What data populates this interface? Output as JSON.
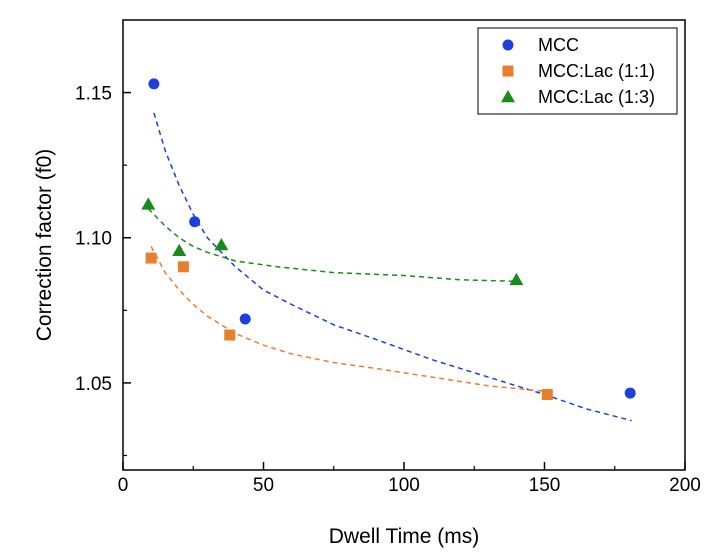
{
  "chart_data": {
    "type": "scatter",
    "title": "",
    "xlabel": "Dwell Time (ms)",
    "ylabel": "Correction factor (f0)",
    "xlim": [
      0,
      200
    ],
    "ylim": [
      1.02,
      1.175
    ],
    "xticks": [
      0,
      50,
      100,
      150,
      200
    ],
    "xtick_labels": [
      "0",
      "50",
      "100",
      "150",
      "200"
    ],
    "yticks": [
      1.05,
      1.1,
      1.15
    ],
    "ytick_labels": [
      "1.05",
      "1.10",
      "1.15"
    ],
    "grid": false,
    "legend_position": "top-right",
    "series": [
      {
        "name": "MCC",
        "marker": "circle",
        "color": "#1f3fdd",
        "points": [
          [
            11,
            1.153
          ],
          [
            25.5,
            1.1055
          ],
          [
            43.5,
            1.072
          ],
          [
            180.5,
            1.0465
          ]
        ],
        "fit": [
          [
            11,
            1.143
          ],
          [
            15,
            1.13
          ],
          [
            20,
            1.118
          ],
          [
            25,
            1.108
          ],
          [
            30,
            1.1
          ],
          [
            40,
            1.09
          ],
          [
            50,
            1.082
          ],
          [
            60,
            1.077
          ],
          [
            75,
            1.07
          ],
          [
            90,
            1.065
          ],
          [
            110,
            1.058
          ],
          [
            130,
            1.052
          ],
          [
            150,
            1.046
          ],
          [
            165,
            1.041
          ],
          [
            181,
            1.037
          ]
        ]
      },
      {
        "name": "MCC:Lac (1:1)",
        "marker": "square",
        "color": "#e87f2c",
        "points": [
          [
            10,
            1.093
          ],
          [
            21.5,
            1.09
          ],
          [
            38,
            1.0665
          ],
          [
            151,
            1.046
          ]
        ],
        "fit": [
          [
            10,
            1.097
          ],
          [
            15,
            1.088
          ],
          [
            20,
            1.082
          ],
          [
            25,
            1.077
          ],
          [
            30,
            1.073
          ],
          [
            40,
            1.067
          ],
          [
            50,
            1.063
          ],
          [
            60,
            1.06
          ],
          [
            75,
            1.057
          ],
          [
            90,
            1.055
          ],
          [
            110,
            1.052
          ],
          [
            130,
            1.049
          ],
          [
            151,
            1.047
          ]
        ]
      },
      {
        "name": "MCC:Lac (1:3)",
        "marker": "triangle",
        "color": "#1a8a1a",
        "points": [
          [
            9,
            1.1115
          ],
          [
            20,
            1.0955
          ],
          [
            35,
            1.0975
          ],
          [
            140,
            1.0855
          ]
        ],
        "fit": [
          [
            9,
            1.11
          ],
          [
            15,
            1.104
          ],
          [
            20,
            1.1
          ],
          [
            25,
            1.097
          ],
          [
            30,
            1.095
          ],
          [
            40,
            1.092
          ],
          [
            55,
            1.09
          ],
          [
            75,
            1.088
          ],
          [
            100,
            1.087
          ],
          [
            120,
            1.0855
          ],
          [
            140,
            1.085
          ]
        ]
      }
    ]
  }
}
